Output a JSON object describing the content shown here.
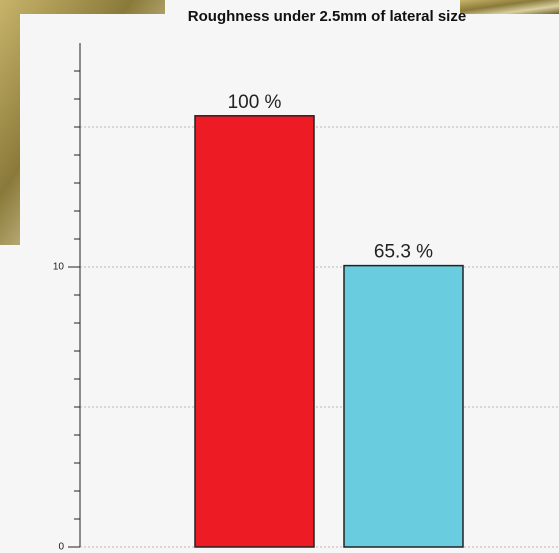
{
  "chart_data": {
    "type": "bar",
    "title": "Roughness under 2.5mm of lateral size",
    "categories": [
      null,
      null
    ],
    "series": [
      {
        "colors": [
          "#ed1c24",
          "#6acddf"
        ],
        "values": [
          15.4,
          10.05
        ]
      }
    ],
    "annotations": [
      "100 %",
      "65.3 %"
    ],
    "ylim": [
      0,
      18
    ],
    "yticks": [
      0,
      10
    ],
    "yminorticks": [
      1,
      2,
      3,
      4,
      5,
      6,
      7,
      8,
      9,
      11,
      12,
      13,
      14,
      15,
      16,
      17
    ],
    "grid_lines": [
      5,
      15
    ],
    "grid": true
  }
}
